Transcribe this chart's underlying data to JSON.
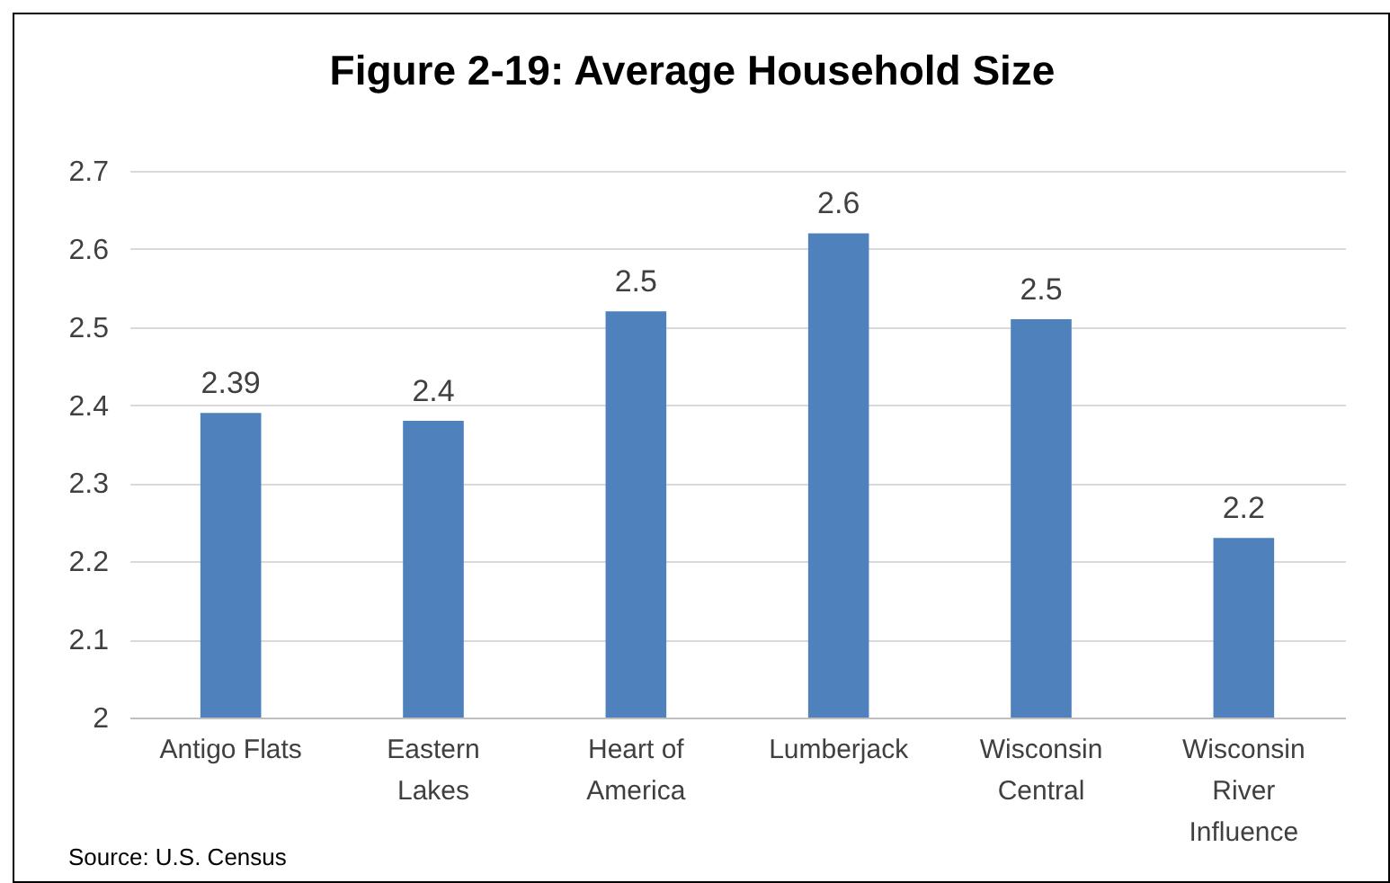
{
  "chart_data": {
    "type": "bar",
    "title": "Figure 2-19: Average Household Size",
    "categories": [
      "Antigo Flats",
      "Eastern Lakes",
      "Heart of America",
      "Lumberjack",
      "Wisconsin Central",
      "Wisconsin River Influence"
    ],
    "values": [
      2.39,
      2.38,
      2.52,
      2.62,
      2.51,
      2.23
    ],
    "value_labels": [
      "2.39",
      "2.4",
      "2.5",
      "2.6",
      "2.5",
      "2.2"
    ],
    "color": "#4f81bd",
    "ylim": [
      2,
      2.7
    ],
    "yticks": [
      2,
      2.1,
      2.2,
      2.3,
      2.4,
      2.5,
      2.6,
      2.7
    ],
    "grid": "y",
    "annotations": [
      "Source: U.S. Census"
    ]
  }
}
